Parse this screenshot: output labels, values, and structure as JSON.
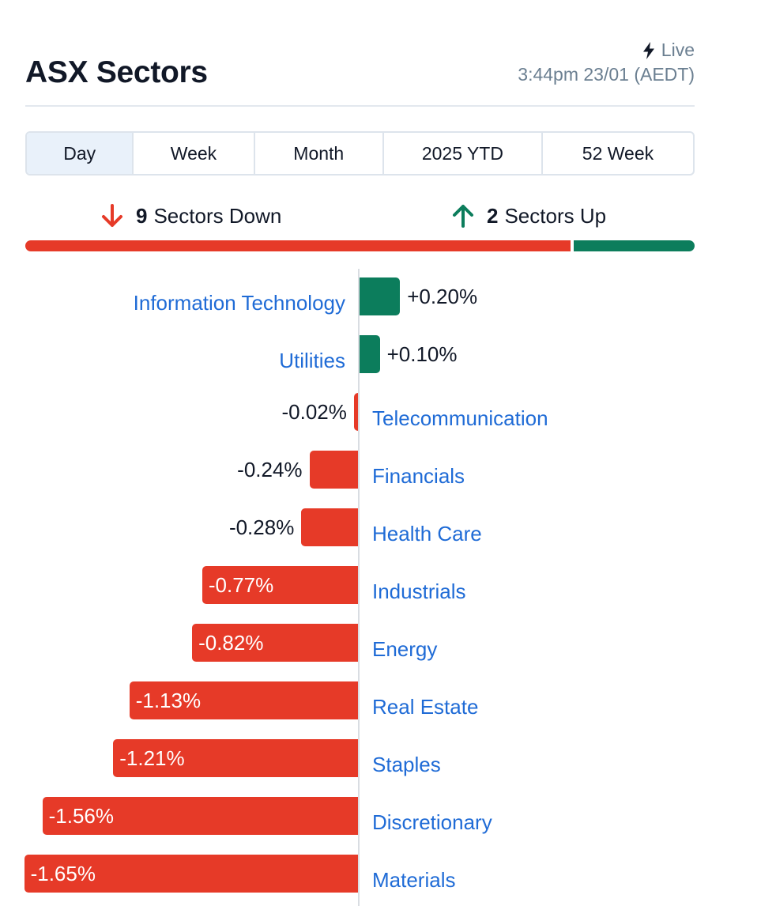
{
  "header": {
    "title": "ASX Sectors",
    "live_label": "Live",
    "timestamp": "3:44pm 23/01 (AEDT)"
  },
  "tabs": [
    {
      "label": "Day",
      "active": true
    },
    {
      "label": "Week",
      "active": false
    },
    {
      "label": "Month",
      "active": false
    },
    {
      "label": "2025 YTD",
      "active": false
    },
    {
      "label": "52 Week",
      "active": false
    }
  ],
  "summary": {
    "down_count": "9",
    "down_label": "Sectors Down",
    "up_count": "2",
    "up_label": "Sectors Up"
  },
  "colors": {
    "down": "#e63a28",
    "up": "#0c7d5c",
    "label": "#1f6bd6"
  },
  "icons": {
    "live": "lightning-bolt-icon",
    "down": "arrow-down-icon",
    "up": "arrow-up-icon"
  },
  "chart_data": {
    "type": "bar",
    "orientation": "horizontal",
    "value_unit": "%",
    "categories": [
      "Information Technology",
      "Utilities",
      "Telecommunication",
      "Financials",
      "Health Care",
      "Industrials",
      "Energy",
      "Real Estate",
      "Staples",
      "Discretionary",
      "Materials"
    ],
    "values": [
      0.2,
      0.1,
      -0.02,
      -0.24,
      -0.28,
      -0.77,
      -0.82,
      -1.13,
      -1.21,
      -1.56,
      -1.65
    ],
    "value_labels": [
      "+0.20%",
      "+0.10%",
      "-0.02%",
      "-0.24%",
      "-0.28%",
      "-0.77%",
      "-0.82%",
      "-1.13%",
      "-1.21%",
      "-1.56%",
      "-1.65%"
    ],
    "grid": false
  }
}
